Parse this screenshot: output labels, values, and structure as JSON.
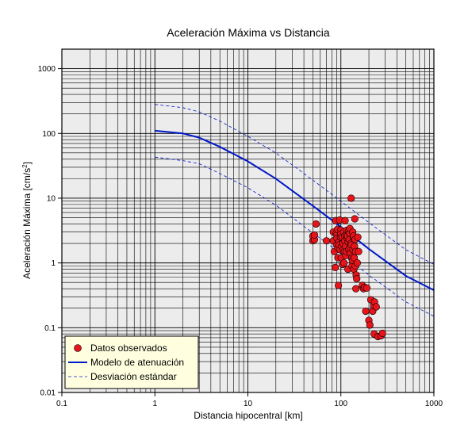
{
  "chart_data": {
    "type": "scatter",
    "title": "Aceleración Máxima vs Distancia",
    "xlabel": "Distancia hipocentral [km]",
    "ylabel_main": "Aceleración Máxima [cm/s",
    "ylabel_sup": "2",
    "ylabel_end": "]",
    "x_scale": "log",
    "y_scale": "log",
    "xlim": [
      0.1,
      1000
    ],
    "ylim": [
      0.01,
      2000
    ],
    "grid": true,
    "legend_position": "bottom-left",
    "x_ticks": [
      {
        "value": 0.1,
        "label": "0.1"
      },
      {
        "value": 1,
        "label": "1"
      },
      {
        "value": 10,
        "label": "10"
      },
      {
        "value": 100,
        "label": "100"
      },
      {
        "value": 1000,
        "label": "1000"
      }
    ],
    "y_ticks": [
      {
        "value": 0.01,
        "label": "0.01"
      },
      {
        "value": 0.1,
        "label": "0.1"
      },
      {
        "value": 1,
        "label": "1"
      },
      {
        "value": 10,
        "label": "10"
      },
      {
        "value": 100,
        "label": "100"
      },
      {
        "value": 1000,
        "label": "1000"
      }
    ],
    "series": [
      {
        "name": "Datos observados",
        "kind": "points",
        "color": "#e8141c",
        "x": [
          50,
          50,
          52,
          52,
          54,
          70,
          83,
          83,
          85,
          87,
          88,
          89,
          90,
          90,
          91,
          92,
          93,
          93,
          94,
          95,
          96,
          97,
          98,
          99,
          100,
          100,
          101,
          102,
          103,
          104,
          105,
          106,
          107,
          108,
          109,
          110,
          110,
          111,
          112,
          113,
          114,
          115,
          116,
          117,
          118,
          119,
          120,
          121,
          122,
          123,
          124,
          125,
          126,
          127,
          128,
          129,
          130,
          131,
          132,
          133,
          134,
          135,
          136,
          137,
          138,
          139,
          140,
          141,
          142,
          143,
          144,
          145,
          146,
          148,
          150,
          152,
          155,
          170,
          175,
          180,
          185,
          190,
          200,
          205,
          210,
          220,
          225,
          228,
          230,
          240,
          250,
          270,
          280
        ],
        "y": [
          2.2,
          2.6,
          2.3,
          2.7,
          4.0,
          2.2,
          3.0,
          2.2,
          1.5,
          0.85,
          4.5,
          2.9,
          1.9,
          2.7,
          2.4,
          3.3,
          1.2,
          1.7,
          0.45,
          2.1,
          1.9,
          4.6,
          1.6,
          2.5,
          3.2,
          2.8,
          1.2,
          1.8,
          2.5,
          0.95,
          2.0,
          1.6,
          3.0,
          1.0,
          1.5,
          2.6,
          2.2,
          4.5,
          1.8,
          1.3,
          2.7,
          1.5,
          3.2,
          2.4,
          2.6,
          0.8,
          2.1,
          3.1,
          1.6,
          2.3,
          2.9,
          3.4,
          1.7,
          1.4,
          2.0,
          10.0,
          1.9,
          1.2,
          0.9,
          1.1,
          3.0,
          1.6,
          2.5,
          2.6,
          0.8,
          1.2,
          1.8,
          4.8,
          2.3,
          0.9,
          1.5,
          0.4,
          0.65,
          0.57,
          1.0,
          2.5,
          1.5,
          0.45,
          0.4,
          0.42,
          0.18,
          0.41,
          0.13,
          0.11,
          0.27,
          0.18,
          0.22,
          0.08,
          0.25,
          0.21,
          0.073,
          0.075,
          0.082
        ]
      },
      {
        "name": "Modelo de atenuación",
        "kind": "line",
        "color": "#0018c8",
        "x": [
          1,
          2,
          3,
          5,
          10,
          20,
          50,
          100,
          200,
          500,
          1000
        ],
        "y": [
          110,
          100,
          86,
          62,
          37,
          20,
          7.6,
          3.6,
          1.65,
          0.63,
          0.38
        ]
      },
      {
        "name": "Desviación estándar",
        "kind": "dashed-line",
        "color": "#0018c8",
        "x": [
          1,
          2,
          3,
          5,
          10,
          20,
          50,
          100,
          200,
          500,
          1000
        ],
        "y": [
          280,
          250,
          215,
          155,
          90,
          50,
          19,
          9.0,
          4.2,
          1.6,
          0.95
        ]
      },
      {
        "name": "",
        "kind": "dashed-line",
        "color": "#0018c8",
        "x": [
          1,
          2,
          3,
          5,
          10,
          20,
          50,
          100,
          200,
          500,
          1000
        ],
        "y": [
          43,
          38,
          34,
          24,
          14.5,
          7.8,
          2.9,
          1.4,
          0.65,
          0.25,
          0.15
        ]
      }
    ],
    "legend": [
      {
        "label": "Datos observados",
        "symbol": "dot"
      },
      {
        "label": "Modelo de atenuación",
        "symbol": "line"
      },
      {
        "label": "Desviación estándar",
        "symbol": "dashed"
      }
    ]
  }
}
